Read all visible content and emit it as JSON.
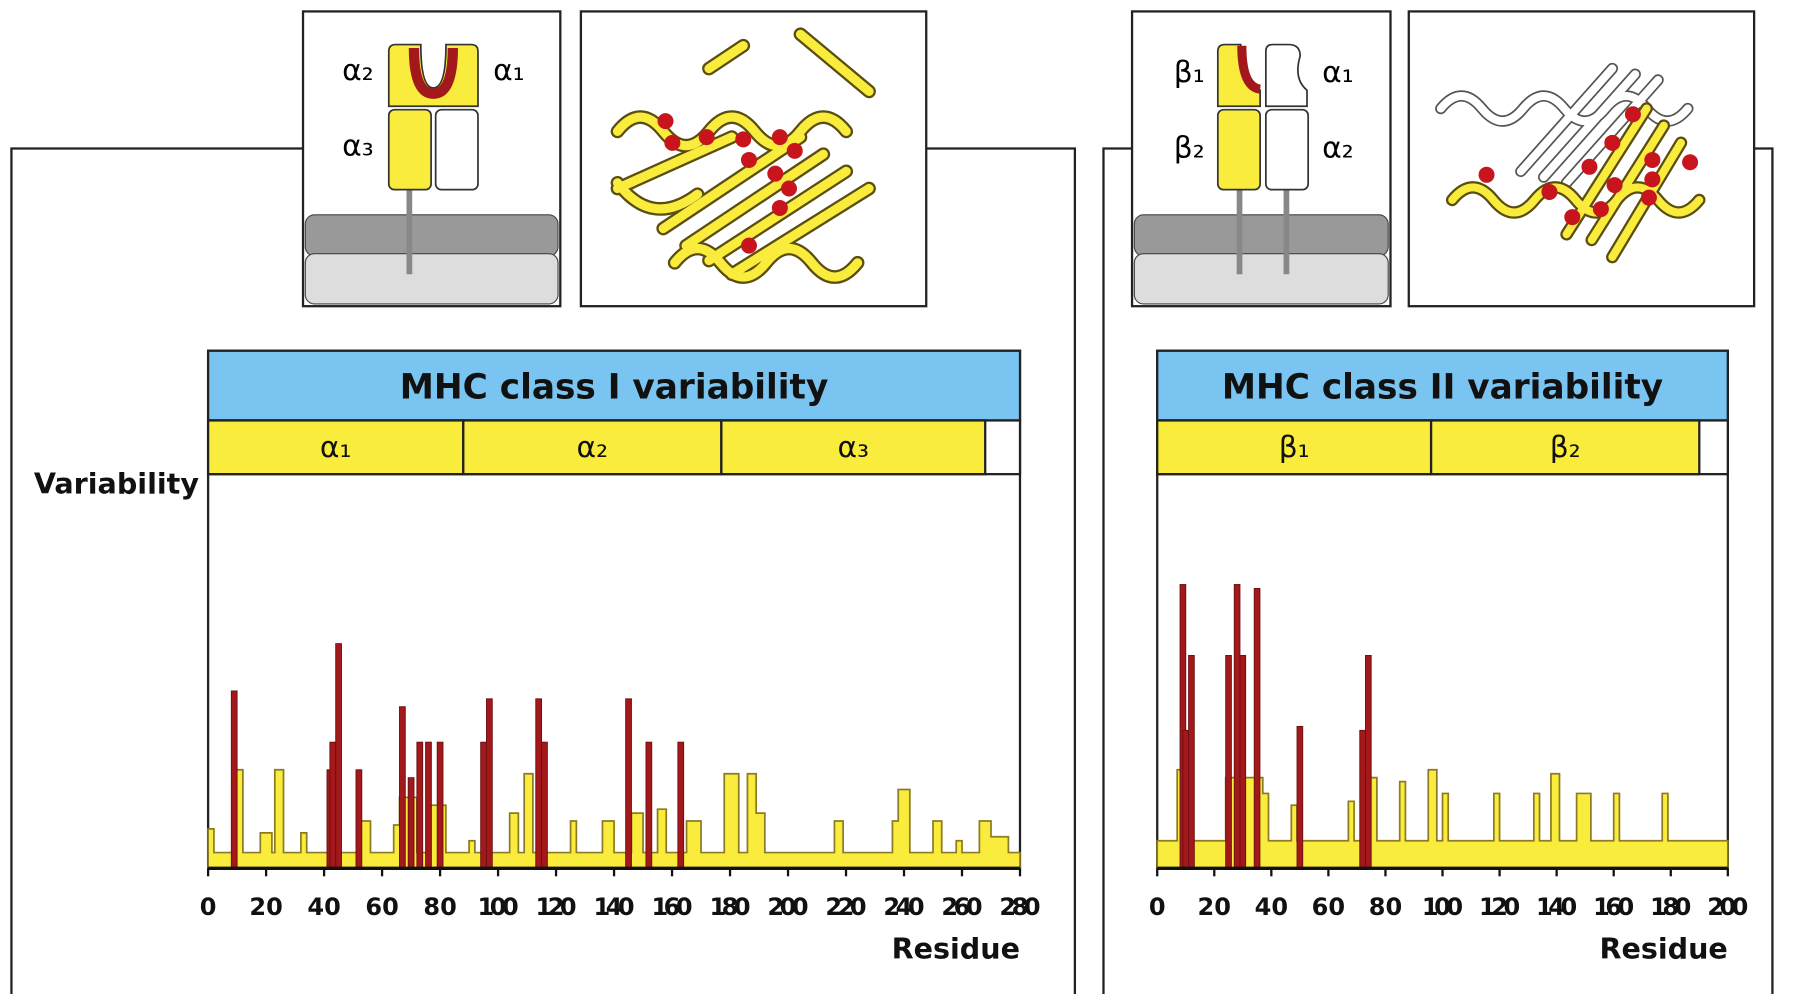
{
  "chart_data": [
    {
      "type": "variability",
      "title": "MHC class I variability",
      "y_label": "Variability",
      "x_label": "Residue",
      "xlim": [
        0,
        280
      ],
      "xticks": [
        0,
        20,
        40,
        60,
        80,
        100,
        120,
        140,
        160,
        180,
        200,
        220,
        240,
        260,
        280
      ],
      "ylim": [
        0,
        100
      ],
      "domains": [
        {
          "label": "α₁",
          "start": 0,
          "end": 88
        },
        {
          "label": "α₂",
          "start": 88,
          "end": 177
        },
        {
          "label": "α₃",
          "start": 177,
          "end": 268
        }
      ],
      "series": [
        {
          "color": "#f9ec3c",
          "x": [
            0,
            2,
            9,
            12,
            18,
            22,
            23,
            26,
            32,
            34,
            52,
            56,
            64,
            66,
            72,
            76,
            82,
            90,
            92,
            104,
            107,
            109,
            112,
            125,
            127,
            136,
            140,
            146,
            150,
            155,
            158,
            165,
            170,
            178,
            183,
            186,
            189,
            192,
            216,
            219,
            236,
            238,
            242,
            250,
            253,
            258,
            260,
            266,
            270,
            276
          ],
          "values": [
            10,
            4,
            25,
            4,
            9,
            4,
            25,
            4,
            9,
            4,
            12,
            4,
            11,
            18,
            4,
            16,
            4,
            7,
            4,
            14,
            4,
            24,
            4,
            12,
            4,
            12,
            4,
            14,
            4,
            15,
            4,
            12,
            4,
            24,
            4,
            24,
            14,
            4,
            12,
            4,
            12,
            20,
            4,
            12,
            4,
            7,
            4,
            12,
            8,
            4
          ]
        },
        {
          "color": "#a3191b",
          "x": [
            9,
            42,
            43,
            45,
            52,
            67,
            70,
            73,
            76,
            80,
            95,
            97,
            114,
            116,
            145,
            152,
            163
          ],
          "values": [
            45,
            25,
            32,
            57,
            25,
            41,
            23,
            32,
            32,
            32,
            32,
            43,
            43,
            32,
            43,
            32,
            32
          ]
        }
      ]
    },
    {
      "type": "variability",
      "title": "MHC class II variability",
      "x_label": "Residue",
      "xlim": [
        0,
        200
      ],
      "xticks": [
        0,
        20,
        40,
        60,
        80,
        100,
        120,
        140,
        160,
        180,
        200
      ],
      "ylim": [
        0,
        100
      ],
      "domains": [
        {
          "label": "β₁",
          "start": 0,
          "end": 96
        },
        {
          "label": "β₂",
          "start": 96,
          "end": 190
        }
      ],
      "series": [
        {
          "color": "#f9ec3c",
          "x": [
            0,
            7,
            10,
            24,
            37,
            39,
            47,
            49,
            67,
            69,
            73,
            77,
            85,
            87,
            95,
            98,
            100,
            102,
            118,
            120,
            132,
            134,
            138,
            141,
            147,
            152,
            160,
            162,
            177,
            179
          ],
          "values": [
            7,
            25,
            7,
            23,
            19,
            7,
            16,
            7,
            17,
            7,
            23,
            7,
            22,
            7,
            25,
            7,
            19,
            7,
            19,
            7,
            19,
            7,
            24,
            7,
            19,
            7,
            19,
            7,
            19,
            7
          ]
        },
        {
          "color": "#a3191b",
          "x": [
            9,
            10,
            12,
            25,
            28,
            30,
            35,
            50,
            72,
            74
          ],
          "values": [
            72,
            35,
            54,
            54,
            72,
            54,
            71,
            36,
            35,
            54
          ]
        }
      ]
    }
  ],
  "icons": [
    {
      "labels": [
        "α₂",
        "α₁",
        "α₃"
      ]
    },
    {
      "labels": [
        "β₁",
        "α₁",
        "β₂",
        "α₂"
      ]
    }
  ]
}
